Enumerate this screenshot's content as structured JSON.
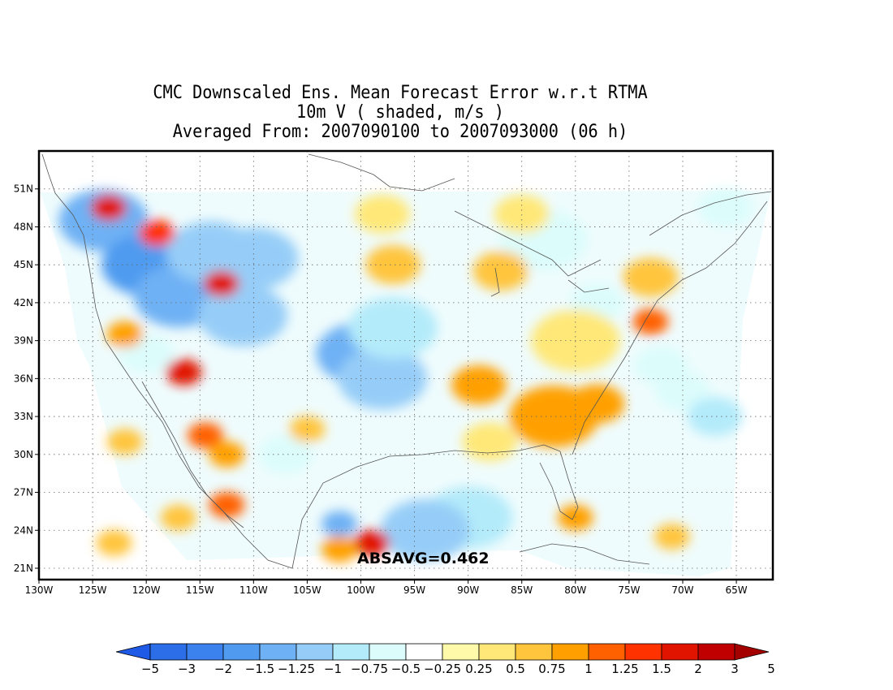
{
  "title": {
    "line1": "CMC Downscaled Ens. Mean Forecast Error w.r.t RTMA",
    "line2": "10m V ( shaded, m/s )",
    "line3": "Averaged From: 2007090100 to 2007093000 (06 h)"
  },
  "map": {
    "lon_ticks": [
      "130W",
      "125W",
      "120W",
      "115W",
      "110W",
      "105W",
      "100W",
      "95W",
      "90W",
      "85W",
      "80W",
      "75W",
      "70W",
      "65W"
    ],
    "lat_ticks": [
      "51N",
      "48N",
      "45N",
      "42N",
      "39N",
      "36N",
      "33N",
      "30N",
      "27N",
      "24N",
      "21N"
    ],
    "grid": "dotted",
    "annotation": "ABSAVG=0.462"
  },
  "colorbar": {
    "levels": [
      "-5",
      "-3",
      "-2",
      "-1.5",
      "-1.25",
      "-1",
      "-0.75",
      "-0.5",
      "-0.25",
      "0.25",
      "0.5",
      "0.75",
      "1",
      "1.25",
      "1.5",
      "2",
      "3",
      "5"
    ],
    "colors": [
      "#1e5ae6",
      "#2b6ee8",
      "#3c82ee",
      "#509bf0",
      "#6eb1f4",
      "#96cdf8",
      "#b4ebfa",
      "#dcfcfc",
      "#ffffff",
      "#fffaaa",
      "#ffe878",
      "#ffc53c",
      "#ffa000",
      "#ff6000",
      "#ff3200",
      "#e11400",
      "#c00000",
      "#a50000"
    ]
  },
  "blobs": [
    {
      "lon": -124,
      "lat": 48.5,
      "level": "-1.25",
      "size": "large"
    },
    {
      "lon": -120,
      "lat": 45,
      "level": "-1.5",
      "size": "large"
    },
    {
      "lon": -117,
      "lat": 42.5,
      "level": "-1.25",
      "size": "large"
    },
    {
      "lon": -114,
      "lat": 46,
      "level": "-1",
      "size": "large"
    },
    {
      "lon": -110,
      "lat": 45.5,
      "level": "-1",
      "size": "large"
    },
    {
      "lon": -111,
      "lat": 41,
      "level": "-1",
      "size": "large"
    },
    {
      "lon": -100,
      "lat": 38,
      "level": "-1.25",
      "size": "large"
    },
    {
      "lon": -98,
      "lat": 36,
      "level": "-1",
      "size": "large"
    },
    {
      "lon": -97,
      "lat": 40,
      "level": "-0.75",
      "size": "large"
    },
    {
      "lon": -90,
      "lat": 25,
      "level": "-0.75",
      "size": "large"
    },
    {
      "lon": -94,
      "lat": 24,
      "level": "-1",
      "size": "large"
    },
    {
      "lon": -102,
      "lat": 24.5,
      "level": "-1.25",
      "size": "small"
    },
    {
      "lon": -83,
      "lat": 47,
      "level": "-0.5",
      "size": "large"
    },
    {
      "lon": -78,
      "lat": 42,
      "level": "-0.5",
      "size": "medium"
    },
    {
      "lon": -70,
      "lat": 35,
      "level": "-0.5",
      "size": "medium"
    },
    {
      "lon": -67,
      "lat": 33,
      "level": "-0.75",
      "size": "medium"
    },
    {
      "lon": -66,
      "lat": 49.5,
      "level": "-0.5",
      "size": "medium"
    },
    {
      "lon": -72,
      "lat": 37,
      "level": "-0.5",
      "size": "medium"
    },
    {
      "lon": -120,
      "lat": 38,
      "level": "-0.5",
      "size": "medium"
    },
    {
      "lon": -107,
      "lat": 30,
      "level": "-0.5",
      "size": "medium"
    },
    {
      "lon": -123.5,
      "lat": 49.5,
      "level": "1.5",
      "size": "small"
    },
    {
      "lon": -119,
      "lat": 47.5,
      "level": "1.25",
      "size": "small"
    },
    {
      "lon": -113,
      "lat": 43.5,
      "level": "1.5",
      "size": "small"
    },
    {
      "lon": -116.5,
      "lat": 36.5,
      "level": "1.5",
      "size": "small"
    },
    {
      "lon": -122,
      "lat": 39.5,
      "level": "0.75",
      "size": "small"
    },
    {
      "lon": -114.5,
      "lat": 31.5,
      "level": "1",
      "size": "small"
    },
    {
      "lon": -112.5,
      "lat": 26,
      "level": "1",
      "size": "small"
    },
    {
      "lon": -112.5,
      "lat": 30,
      "level": "0.75",
      "size": "small"
    },
    {
      "lon": -99,
      "lat": 23,
      "level": "1.5",
      "size": "small"
    },
    {
      "lon": -102,
      "lat": 22.5,
      "level": "0.75",
      "size": "small"
    },
    {
      "lon": -97,
      "lat": 45,
      "level": "0.5",
      "size": "medium"
    },
    {
      "lon": -89,
      "lat": 35.5,
      "level": "0.75",
      "size": "medium"
    },
    {
      "lon": -82,
      "lat": 33,
      "level": "0.75",
      "size": "large"
    },
    {
      "lon": -78,
      "lat": 34,
      "level": "0.75",
      "size": "medium"
    },
    {
      "lon": -73,
      "lat": 40.5,
      "level": "1",
      "size": "small"
    },
    {
      "lon": -80,
      "lat": 39,
      "level": "0.25",
      "size": "large"
    },
    {
      "lon": -87,
      "lat": 44.5,
      "level": "0.5",
      "size": "medium"
    },
    {
      "lon": -80,
      "lat": 25,
      "level": "0.75",
      "size": "small"
    },
    {
      "lon": -71,
      "lat": 23.5,
      "level": "0.5",
      "size": "small"
    },
    {
      "lon": -88,
      "lat": 31,
      "level": "0.25",
      "size": "medium"
    },
    {
      "lon": -105,
      "lat": 32,
      "level": "0.5",
      "size": "small"
    },
    {
      "lon": -98,
      "lat": 49,
      "level": "0.25",
      "size": "medium"
    },
    {
      "lon": -85,
      "lat": 49,
      "level": "0.25",
      "size": "medium"
    },
    {
      "lon": -73,
      "lat": 44,
      "level": "0.5",
      "size": "medium"
    },
    {
      "lon": -122,
      "lat": 31,
      "level": "0.5",
      "size": "small"
    },
    {
      "lon": -117,
      "lat": 25,
      "level": "0.5",
      "size": "small"
    },
    {
      "lon": -123,
      "lat": 23,
      "level": "0.5",
      "size": "small"
    }
  ]
}
